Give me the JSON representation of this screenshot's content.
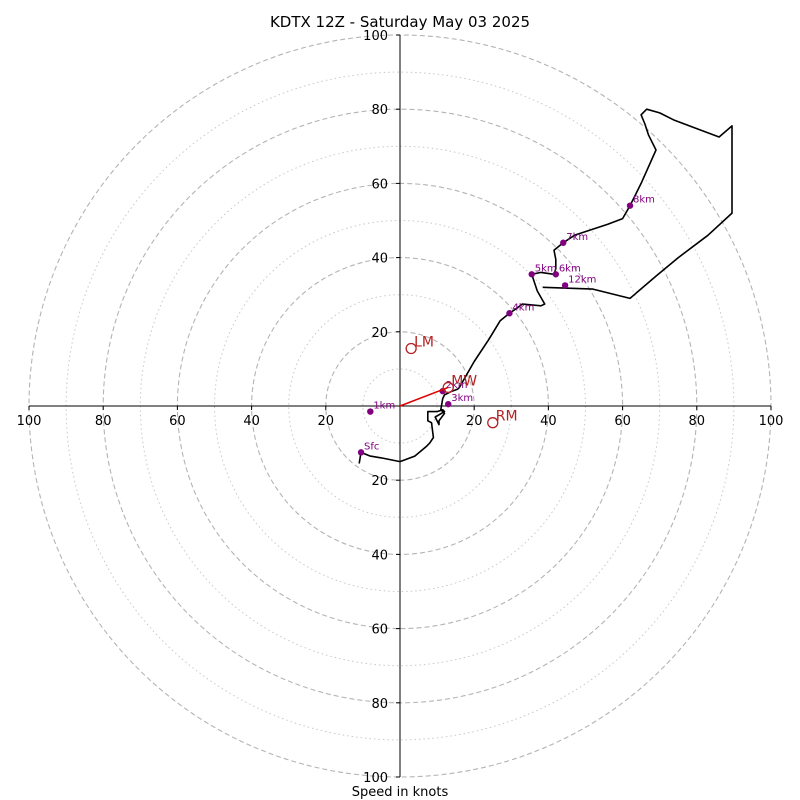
{
  "chart_data": {
    "type": "line",
    "title": "KDTX 12Z - Saturday May 03 2025",
    "xlabel": "Speed in knots",
    "ylabel": "",
    "xlim": [
      -100,
      100
    ],
    "ylim": [
      -100,
      100
    ],
    "rings": {
      "major": [
        20,
        40,
        60,
        80,
        100
      ],
      "minor": [
        10,
        30,
        50,
        70,
        90
      ]
    },
    "grid": true,
    "x_ticks": [
      {
        "value": -100,
        "label": "100"
      },
      {
        "value": -80,
        "label": "80"
      },
      {
        "value": -60,
        "label": "60"
      },
      {
        "value": -40,
        "label": "40"
      },
      {
        "value": -20,
        "label": "20"
      },
      {
        "value": 20,
        "label": "20"
      },
      {
        "value": 40,
        "label": "40"
      },
      {
        "value": 60,
        "label": "60"
      },
      {
        "value": 80,
        "label": "80"
      },
      {
        "value": 100,
        "label": "100"
      }
    ],
    "y_ticks": [
      {
        "value": 100,
        "label": "100"
      },
      {
        "value": 80,
        "label": "80"
      },
      {
        "value": 60,
        "label": "60"
      },
      {
        "value": 40,
        "label": "40"
      },
      {
        "value": 20,
        "label": "20"
      },
      {
        "value": -20,
        "label": "20"
      },
      {
        "value": -40,
        "label": "40"
      },
      {
        "value": -60,
        "label": "60"
      },
      {
        "value": -80,
        "label": "80"
      },
      {
        "value": -100,
        "label": "100"
      }
    ],
    "series": [
      {
        "color": "#000000",
        "points": [
          [
            -11,
            -15.5
          ],
          [
            -10.5,
            -12.5
          ],
          [
            -8,
            -13.5
          ],
          [
            -5,
            -14
          ],
          [
            0,
            -15
          ],
          [
            4,
            -13.5
          ],
          [
            7,
            -11
          ],
          [
            8,
            -10
          ],
          [
            9,
            -8.5
          ],
          [
            8.5,
            -4.5
          ],
          [
            7.5,
            -4
          ],
          [
            7.5,
            -3
          ],
          [
            7.5,
            -1.5
          ],
          [
            10,
            -1.5
          ],
          [
            11.5,
            -1
          ],
          [
            12,
            -1.5
          ],
          [
            9.5,
            -3
          ],
          [
            10.5,
            -5
          ],
          [
            10.5,
            -4
          ],
          [
            12,
            -2
          ],
          [
            11,
            -1
          ],
          [
            11.5,
            2
          ],
          [
            12,
            3
          ],
          [
            14,
            4
          ],
          [
            15.5,
            4.5
          ],
          [
            16,
            5
          ],
          [
            20,
            12
          ],
          [
            24,
            18
          ],
          [
            27,
            23
          ],
          [
            29.5,
            25
          ],
          [
            31,
            26
          ],
          [
            33,
            27.5
          ],
          [
            38,
            27
          ],
          [
            39,
            27.5
          ],
          [
            37,
            31
          ],
          [
            35.5,
            35.5
          ],
          [
            38,
            36
          ],
          [
            41.5,
            35.5
          ],
          [
            42,
            37
          ],
          [
            42,
            39.5
          ],
          [
            41.5,
            42
          ],
          [
            44,
            44
          ],
          [
            47,
            46
          ],
          [
            56,
            49
          ],
          [
            60,
            50.5
          ],
          [
            62,
            54
          ],
          [
            65,
            60
          ],
          [
            69,
            69
          ],
          [
            67,
            73
          ],
          [
            66,
            76
          ],
          [
            65,
            78.5
          ],
          [
            66.5,
            80
          ],
          [
            70,
            79
          ],
          [
            74,
            77
          ],
          [
            86,
            72.5
          ],
          [
            89.5,
            75.5
          ],
          [
            89.5,
            52
          ],
          [
            83,
            46
          ],
          [
            75,
            40
          ],
          [
            69,
            35
          ],
          [
            62,
            29
          ],
          [
            52,
            31.5
          ],
          [
            38.5,
            32
          ]
        ]
      }
    ],
    "height_markers": [
      {
        "label": "Sfc",
        "x": -10.5,
        "y": -12.5
      },
      {
        "label": "1km",
        "x": -8,
        "y": -1.5
      },
      {
        "label": "2km",
        "x": 11.5,
        "y": 4
      },
      {
        "label": "3km",
        "x": 13,
        "y": 0.5
      },
      {
        "label": "4km",
        "x": 29.5,
        "y": 25
      },
      {
        "label": "5km",
        "x": 35.5,
        "y": 35.5
      },
      {
        "label": "6km",
        "x": 42,
        "y": 35.5
      },
      {
        "label": "7km",
        "x": 44,
        "y": 44
      },
      {
        "label": "8km",
        "x": 62,
        "y": 54
      },
      {
        "label": "12km",
        "x": 44.5,
        "y": 32.5
      }
    ],
    "height_marker_color": "#800080",
    "storm_motion": {
      "color": "#b22222",
      "mean_wind_color": "#e00000",
      "points": [
        {
          "label": "LM",
          "x": 3,
          "y": 15.5
        },
        {
          "label": "MW",
          "x": 13,
          "y": 5
        },
        {
          "label": "RM",
          "x": 25,
          "y": -4.5
        }
      ]
    }
  }
}
